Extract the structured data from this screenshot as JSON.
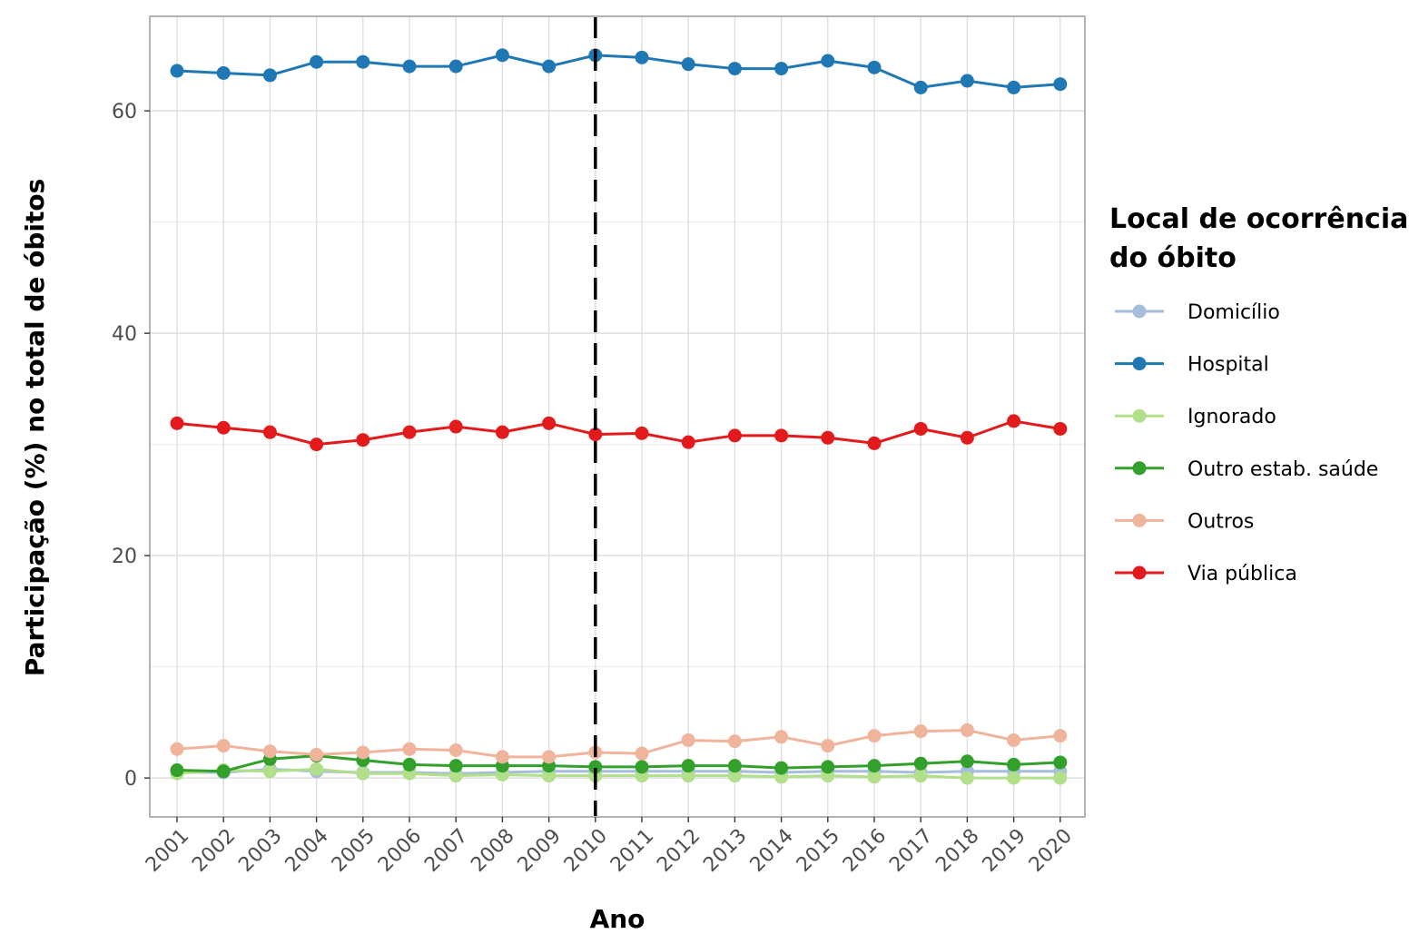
{
  "chart_data": {
    "type": "line",
    "xlabel": "Ano",
    "ylabel": "Participação (%) no total de óbitos",
    "x": [
      "2001",
      "2002",
      "2003",
      "2004",
      "2005",
      "2006",
      "2007",
      "2008",
      "2009",
      "2010",
      "2011",
      "2012",
      "2013",
      "2014",
      "2015",
      "2016",
      "2017",
      "2018",
      "2019",
      "2020"
    ],
    "ylim": [
      -3.5,
      68.5
    ],
    "yticks": [
      0,
      20,
      40,
      60
    ],
    "grid": true,
    "reference_line": {
      "x": "2010",
      "style": "dashed",
      "color": "#000000"
    },
    "legend": {
      "title_line1": "Local de ocorrência",
      "title_line2": "do óbito",
      "placement": "right"
    },
    "series": [
      {
        "name": "Domicílio",
        "color": "#a6bddb",
        "values": [
          0.5,
          0.5,
          0.8,
          0.6,
          0.5,
          0.5,
          0.4,
          0.5,
          0.6,
          0.6,
          0.6,
          0.6,
          0.6,
          0.5,
          0.6,
          0.6,
          0.5,
          0.6,
          0.6,
          0.6
        ]
      },
      {
        "name": "Hospital",
        "color": "#1f78b4",
        "values": [
          63.6,
          63.4,
          63.2,
          64.4,
          64.4,
          64.0,
          64.0,
          65.0,
          64.0,
          65.0,
          64.8,
          64.2,
          63.8,
          63.8,
          64.5,
          63.9,
          62.1,
          62.7,
          62.1,
          62.4
        ]
      },
      {
        "name": "Ignorado",
        "color": "#b2df8a",
        "values": [
          0.4,
          0.7,
          0.6,
          0.8,
          0.4,
          0.4,
          0.2,
          0.3,
          0.2,
          0.2,
          0.2,
          0.2,
          0.2,
          0.1,
          0.2,
          0.1,
          0.2,
          0.0,
          0.0,
          0.0
        ]
      },
      {
        "name": "Outro estab. saúde",
        "color": "#33a02c",
        "values": [
          0.7,
          0.6,
          1.7,
          2.0,
          1.6,
          1.2,
          1.1,
          1.1,
          1.1,
          1.0,
          1.0,
          1.1,
          1.1,
          0.9,
          1.0,
          1.1,
          1.3,
          1.5,
          1.2,
          1.4
        ]
      },
      {
        "name": "Outros",
        "color": "#f0b39b",
        "values": [
          2.6,
          2.9,
          2.4,
          2.1,
          2.3,
          2.6,
          2.5,
          1.9,
          1.9,
          2.3,
          2.2,
          3.4,
          3.3,
          3.7,
          2.9,
          3.8,
          4.2,
          4.3,
          3.4,
          3.8
        ]
      },
      {
        "name": "Via pública",
        "color": "#e31a1c",
        "values": [
          31.9,
          31.5,
          31.1,
          30.0,
          30.4,
          31.1,
          31.6,
          31.1,
          31.9,
          30.9,
          31.0,
          30.2,
          30.8,
          30.8,
          30.6,
          30.1,
          31.4,
          30.6,
          32.1,
          31.4
        ]
      }
    ]
  }
}
